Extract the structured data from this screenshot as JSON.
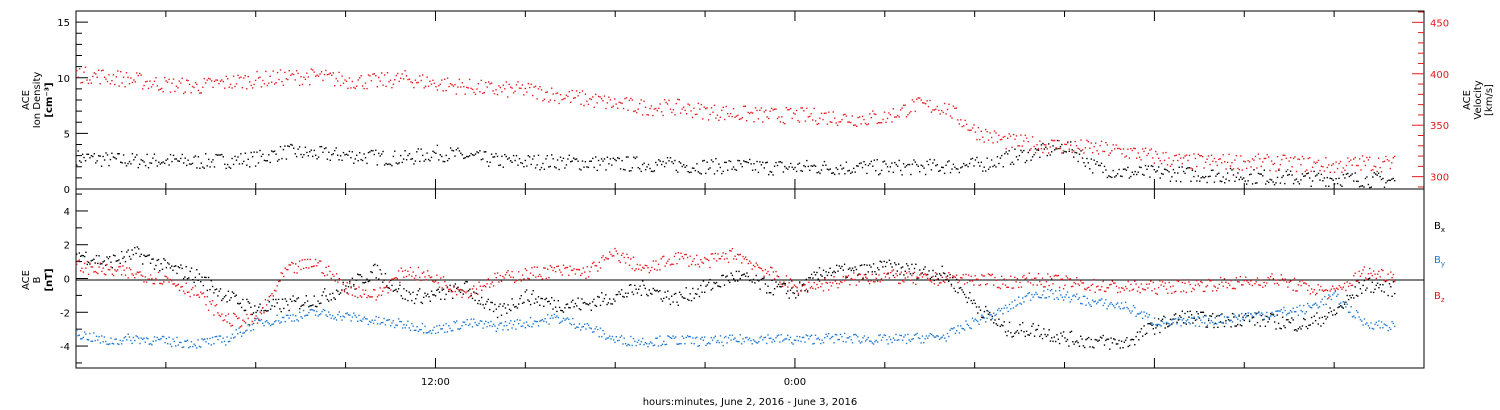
{
  "chart_data": [
    {
      "type": "scatter",
      "panel": "top",
      "y_left": {
        "label_lines": [
          "ACE",
          "Ion Density",
          "[cm⁻³]"
        ],
        "ylim": [
          0,
          16
        ],
        "ticks": [
          0,
          5,
          10,
          15
        ],
        "color": "#000000"
      },
      "y_right": {
        "label_lines": [
          "ACE",
          "Velocity",
          "[km/s]"
        ],
        "ylim": [
          288,
          461
        ],
        "ticks": [
          300,
          350,
          400,
          450
        ],
        "color": "#e41a1c"
      },
      "series": [
        {
          "axis": "left",
          "color": "#000000",
          "scatter": 0.7,
          "points": [
            [
              0,
              2.9
            ],
            [
              1,
              2.7
            ],
            [
              2,
              2.6
            ],
            [
              3,
              2.6
            ],
            [
              4,
              2.5
            ],
            [
              5,
              2.6
            ],
            [
              6,
              2.8
            ],
            [
              7,
              3.4
            ],
            [
              8,
              3.2
            ],
            [
              9,
              3.1
            ],
            [
              10,
              2.9
            ],
            [
              11,
              2.8
            ],
            [
              12,
              3.3
            ],
            [
              13,
              3.0
            ],
            [
              14,
              2.6
            ],
            [
              15,
              2.5
            ],
            [
              16,
              2.5
            ],
            [
              17,
              2.4
            ],
            [
              18,
              2.3
            ],
            [
              19,
              2.3
            ],
            [
              20,
              2.2
            ],
            [
              21,
              2.1
            ],
            [
              22,
              2.1
            ],
            [
              23,
              2.0
            ],
            [
              24,
              2.0
            ],
            [
              25,
              2.0
            ],
            [
              26,
              2.0
            ],
            [
              27,
              2.0
            ],
            [
              28,
              2.0
            ],
            [
              29,
              2.1
            ],
            [
              30,
              2.2
            ],
            [
              30.5,
              2.4
            ],
            [
              31,
              2.8
            ],
            [
              32,
              3.3
            ],
            [
              33,
              3.9
            ],
            [
              33.5,
              3.1
            ],
            [
              34,
              2.0
            ],
            [
              35,
              1.5
            ],
            [
              36,
              1.5
            ],
            [
              37,
              1.4
            ],
            [
              38,
              1.3
            ],
            [
              39,
              1.2
            ],
            [
              40,
              1.1
            ],
            [
              41,
              1.0
            ],
            [
              42,
              1.0
            ],
            [
              43,
              0.9
            ],
            [
              44,
              0.8
            ]
          ]
        },
        {
          "axis": "right",
          "color": "#e41a1c",
          "scatter": 8,
          "points": [
            [
              0,
              400
            ],
            [
              1,
              398
            ],
            [
              2,
              394
            ],
            [
              3,
              390
            ],
            [
              4,
              388
            ],
            [
              5,
              392
            ],
            [
              6,
              395
            ],
            [
              7,
              397
            ],
            [
              8,
              398
            ],
            [
              9,
              394
            ],
            [
              10,
              393
            ],
            [
              11,
              396
            ],
            [
              12,
              391
            ],
            [
              13,
              388
            ],
            [
              14,
              385
            ],
            [
              15,
              385
            ],
            [
              16,
              380
            ],
            [
              17,
              376
            ],
            [
              18,
              371
            ],
            [
              19,
              368
            ],
            [
              20,
              368
            ],
            [
              21,
              364
            ],
            [
              22,
              362
            ],
            [
              23,
              360
            ],
            [
              24,
              360
            ],
            [
              25,
              359
            ],
            [
              26,
              357
            ],
            [
              27,
              358
            ],
            [
              28,
              370
            ],
            [
              29,
              368
            ],
            [
              30,
              345
            ],
            [
              31,
              335
            ],
            [
              32,
              332
            ],
            [
              33,
              330
            ],
            [
              34,
              328
            ],
            [
              35,
              325
            ],
            [
              36,
              320
            ],
            [
              37,
              315
            ],
            [
              38,
              315
            ],
            [
              39,
              315
            ],
            [
              40,
              314
            ],
            [
              41,
              313
            ],
            [
              42,
              311
            ],
            [
              43,
              314
            ],
            [
              44,
              313
            ]
          ]
        }
      ]
    },
    {
      "type": "scatter",
      "panel": "bottom",
      "y_left": {
        "label_lines": [
          "ACE",
          "B",
          "[nT]"
        ],
        "ylim": [
          -5.3,
          5.3
        ],
        "ticks": [
          -4,
          -2,
          0,
          2,
          4
        ],
        "color": "#000000"
      },
      "zero_line": true,
      "legend": {
        "placement": "right",
        "items": [
          {
            "label": "Bx",
            "color": "#000000"
          },
          {
            "label": "By",
            "color": "#1f78d1"
          },
          {
            "label": "Bz",
            "color": "#e41a1c"
          }
        ]
      },
      "series": [
        {
          "name": "Bx",
          "color": "#000000",
          "scatter": 0.45,
          "points": [
            [
              0,
              1.5
            ],
            [
              1,
              1.0
            ],
            [
              2,
              1.5
            ],
            [
              3,
              0.7
            ],
            [
              4,
              0.2
            ],
            [
              5,
              -1.0
            ],
            [
              6,
              -1.8
            ],
            [
              7,
              -1.5
            ],
            [
              8,
              -1.2
            ],
            [
              9,
              -0.5
            ],
            [
              10,
              0.5
            ],
            [
              11,
              -1.0
            ],
            [
              12,
              -1.0
            ],
            [
              13,
              -0.5
            ],
            [
              14,
              -2.0
            ],
            [
              15,
              -1.0
            ],
            [
              16,
              -1.5
            ],
            [
              17,
              -1.5
            ],
            [
              18,
              -1.0
            ],
            [
              19,
              -0.5
            ],
            [
              20,
              -1.2
            ],
            [
              21,
              -0.5
            ],
            [
              22,
              0.2
            ],
            [
              23,
              -0.4
            ],
            [
              24,
              -0.8
            ],
            [
              25,
              0.5
            ],
            [
              26,
              0.4
            ],
            [
              27,
              0.7
            ],
            [
              28,
              0.5
            ],
            [
              29,
              0.3
            ],
            [
              30,
              -1.5
            ],
            [
              31,
              -3.0
            ],
            [
              32,
              -3.0
            ],
            [
              33,
              -3.5
            ],
            [
              34,
              -3.7
            ],
            [
              35,
              -3.8
            ],
            [
              36,
              -2.8
            ],
            [
              37,
              -2.2
            ],
            [
              38,
              -2.5
            ],
            [
              39,
              -2.3
            ],
            [
              40,
              -2.5
            ],
            [
              41,
              -2.7
            ],
            [
              42,
              -2.0
            ],
            [
              43,
              -0.3
            ],
            [
              44,
              -0.6
            ]
          ]
        },
        {
          "name": "By",
          "color": "#1f78d1",
          "scatter": 0.3,
          "points": [
            [
              0,
              -3.2
            ],
            [
              1,
              -3.7
            ],
            [
              2,
              -3.5
            ],
            [
              3,
              -3.7
            ],
            [
              4,
              -3.8
            ],
            [
              5,
              -3.6
            ],
            [
              6,
              -2.6
            ],
            [
              7,
              -2.3
            ],
            [
              8,
              -2.0
            ],
            [
              9,
              -2.2
            ],
            [
              10,
              -2.5
            ],
            [
              11,
              -2.7
            ],
            [
              12,
              -3.0
            ],
            [
              13,
              -2.6
            ],
            [
              14,
              -2.8
            ],
            [
              15,
              -2.6
            ],
            [
              16,
              -2.3
            ],
            [
              17,
              -2.8
            ],
            [
              18,
              -3.6
            ],
            [
              19,
              -3.7
            ],
            [
              20,
              -3.6
            ],
            [
              21,
              -3.7
            ],
            [
              22,
              -3.6
            ],
            [
              23,
              -3.5
            ],
            [
              24,
              -3.6
            ],
            [
              25,
              -3.5
            ],
            [
              26,
              -3.5
            ],
            [
              27,
              -3.6
            ],
            [
              28,
              -3.5
            ],
            [
              29,
              -3.4
            ],
            [
              30,
              -2.5
            ],
            [
              31,
              -1.8
            ],
            [
              32,
              -0.8
            ],
            [
              33,
              -1.0
            ],
            [
              34,
              -1.4
            ],
            [
              35,
              -1.6
            ],
            [
              36,
              -2.5
            ],
            [
              37,
              -2.6
            ],
            [
              38,
              -2.4
            ],
            [
              39,
              -2.2
            ],
            [
              40,
              -2.0
            ],
            [
              41,
              -1.8
            ],
            [
              42,
              -1.0
            ],
            [
              43,
              -2.6
            ],
            [
              44,
              -2.8
            ]
          ]
        },
        {
          "name": "Bz",
          "color": "#e41a1c",
          "scatter": 0.4,
          "points": [
            [
              0,
              0.8
            ],
            [
              1,
              0.5
            ],
            [
              2,
              0.3
            ],
            [
              3,
              0.0
            ],
            [
              4,
              -0.8
            ],
            [
              5,
              -2.4
            ],
            [
              6,
              -2.5
            ],
            [
              7,
              0.5
            ],
            [
              8,
              1.0
            ],
            [
              9,
              -0.5
            ],
            [
              10,
              -1.0
            ],
            [
              11,
              0.5
            ],
            [
              12,
              0.0
            ],
            [
              13,
              -0.8
            ],
            [
              14,
              0.0
            ],
            [
              15,
              0.3
            ],
            [
              16,
              0.5
            ],
            [
              17,
              0.4
            ],
            [
              18,
              1.5
            ],
            [
              19,
              0.5
            ],
            [
              20,
              1.3
            ],
            [
              21,
              1.0
            ],
            [
              22,
              1.5
            ],
            [
              23,
              0.5
            ],
            [
              24,
              -0.5
            ],
            [
              25,
              -0.3
            ],
            [
              26,
              0.0
            ],
            [
              27,
              0.2
            ],
            [
              28,
              0.0
            ],
            [
              29,
              0.0
            ],
            [
              30,
              0.0
            ],
            [
              31,
              -0.2
            ],
            [
              32,
              0.0
            ],
            [
              33,
              -0.2
            ],
            [
              34,
              -0.4
            ],
            [
              35,
              -0.5
            ],
            [
              36,
              -0.5
            ],
            [
              37,
              -0.4
            ],
            [
              38,
              -0.3
            ],
            [
              39,
              -0.2
            ],
            [
              40,
              0.0
            ],
            [
              41,
              -0.5
            ],
            [
              42,
              -0.8
            ],
            [
              43,
              0.4
            ],
            [
              44,
              0.2
            ]
          ]
        }
      ]
    }
  ],
  "x_axis": {
    "xlim": [
      0,
      45
    ],
    "tick_labels": [
      {
        "x": 12,
        "label": "12:00"
      },
      {
        "x": 24,
        "label": "0:00"
      }
    ],
    "caption": "hours:minutes, June  2, 2016 - June  3, 2016"
  },
  "legend_text": {
    "bx_base": "B",
    "bx_sub": "x",
    "by_base": "B",
    "by_sub": "y",
    "bz_base": "B",
    "bz_sub": "z"
  }
}
